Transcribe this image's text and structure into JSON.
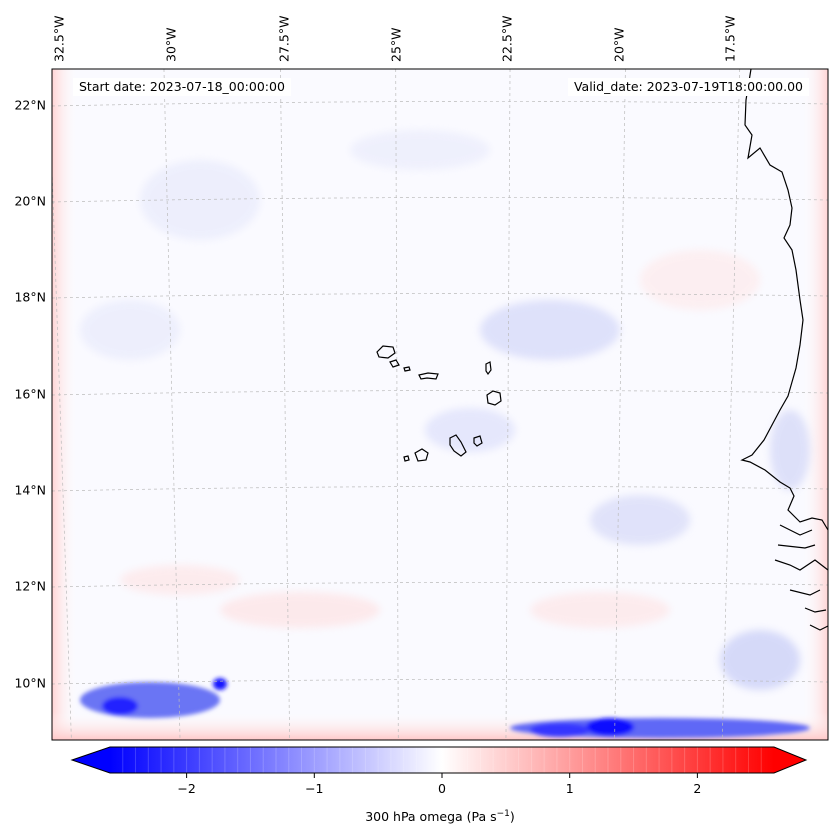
{
  "map": {
    "annotations": {
      "start": "Start date: 2023-07-18_00:00:00",
      "valid": "Valid_date: 2023-07-19T18:00:00.00"
    },
    "lon_ticks": [
      "32.5°W",
      "30°W",
      "27.5°W",
      "25°W",
      "22.5°W",
      "20°W",
      "17.5°W"
    ],
    "lat_ticks": [
      "22°N",
      "20°N",
      "18°N",
      "16°N",
      "14°N",
      "12°N",
      "10°N"
    ],
    "field": "300 hPa omega",
    "colormap": "bwr",
    "colors": {
      "negative": "#0000ff",
      "neutral": "#ffffff",
      "positive": "#ff0000",
      "coast": "#000000",
      "grid": "#bbbbbb"
    },
    "gridlines": true
  },
  "colorbar": {
    "ticks": [
      "−2",
      "−1",
      "0",
      "1",
      "2"
    ],
    "tick_values": [
      -2,
      -1,
      0,
      1,
      2
    ],
    "range": [
      -2.6,
      2.6
    ],
    "extend": "both",
    "label_main": "300 hPa omega (Pa s",
    "label_sup": "−1",
    "label_end": ")"
  }
}
